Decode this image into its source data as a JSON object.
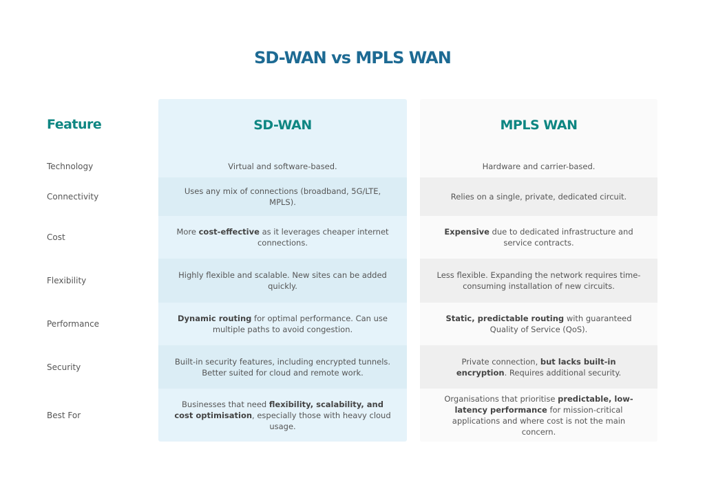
{
  "title": "SD-WAN vs MPLS WAN",
  "feature_header": "Feature",
  "columns": {
    "sdwan": "SD-WAN",
    "mpls": "MPLS WAN"
  },
  "colors": {
    "title": "#1d6a93",
    "accent": "#0e8682",
    "sdwan_bg": "#e5f3fa",
    "sdwan_alt": "#dbedf5",
    "mpls_bg": "#fafafa",
    "mpls_alt": "#efefef"
  },
  "rows": [
    {
      "feature": "Technology",
      "sdwan": [
        {
          "t": "Virtual and software-based."
        }
      ],
      "mpls": [
        {
          "t": "Hardware and carrier-based."
        }
      ]
    },
    {
      "feature": "Connectivity",
      "sdwan": [
        {
          "t": "Uses any mix of connections (broadband, 5G/LTE, MPLS)."
        }
      ],
      "mpls": [
        {
          "t": "Relies on a single, private, dedicated circuit."
        }
      ]
    },
    {
      "feature": "Cost",
      "sdwan": [
        {
          "t": "More "
        },
        {
          "t": "cost-effective",
          "b": true
        },
        {
          "t": " as it leverages cheaper internet connections."
        }
      ],
      "mpls": [
        {
          "t": "Expensive",
          "b": true
        },
        {
          "t": " due to dedicated infrastructure and service contracts."
        }
      ]
    },
    {
      "feature": "Flexibility",
      "sdwan": [
        {
          "t": "Highly flexible and scalable. New sites can be added quickly."
        }
      ],
      "mpls": [
        {
          "t": "Less flexible. Expanding the network requires time-consuming installation of new circuits."
        }
      ]
    },
    {
      "feature": "Performance",
      "sdwan": [
        {
          "t": "Dynamic routing",
          "b": true
        },
        {
          "t": " for optimal performance. Can use multiple paths to avoid congestion."
        }
      ],
      "mpls": [
        {
          "t": "Static, predictable routing",
          "b": true
        },
        {
          "t": " with guaranteed Quality of Service (QoS)."
        }
      ]
    },
    {
      "feature": "Security",
      "sdwan": [
        {
          "t": "Built-in security features, including encrypted tunnels. Better suited for cloud and remote work."
        }
      ],
      "mpls": [
        {
          "t": "Private connection, "
        },
        {
          "t": "but lacks built-in encryption",
          "b": true
        },
        {
          "t": ". Requires additional security."
        }
      ]
    },
    {
      "feature": "Best For",
      "sdwan": [
        {
          "t": "Businesses that need "
        },
        {
          "t": "flexibility, scalability, and cost optimisation",
          "b": true
        },
        {
          "t": ", especially those with heavy cloud usage."
        }
      ],
      "mpls": [
        {
          "t": "Organisations that prioritise "
        },
        {
          "t": "predictable, low-latency performance",
          "b": true
        },
        {
          "t": " for mission-critical applications and where cost is not the main concern."
        }
      ]
    }
  ]
}
